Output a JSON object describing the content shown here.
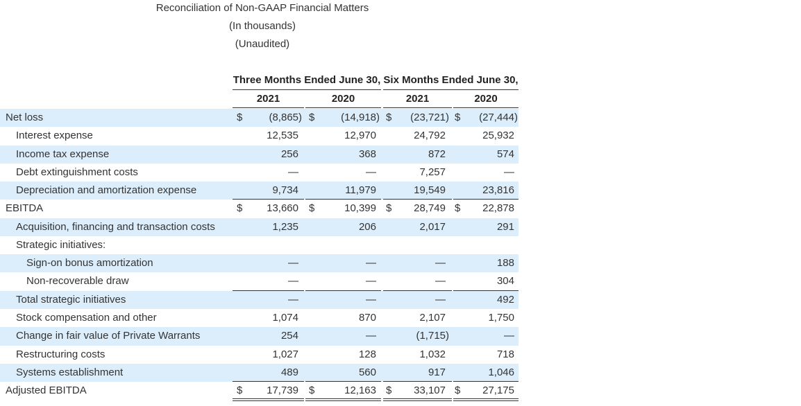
{
  "header": {
    "title": "Reconciliation of Non-GAAP Financial Matters",
    "subtitle": "(In thousands)",
    "note": "(Unaudited)"
  },
  "table": {
    "group_headers": [
      "Three Months Ended June 30,",
      "Six Months Ended June 30,"
    ],
    "columns": [
      "2021",
      "2020",
      "2021",
      "2020"
    ],
    "rows": [
      {
        "label": "Net loss",
        "currency": "$",
        "values": [
          "(8,865)",
          "(14,918)",
          "(23,721)",
          "(27,444)"
        ]
      },
      {
        "label": "Interest expense",
        "values": [
          "12,535",
          "12,970",
          "24,792",
          "25,932"
        ]
      },
      {
        "label": "Income tax expense",
        "values": [
          "256",
          "368",
          "872",
          "574"
        ]
      },
      {
        "label": "Debt extinguishment costs",
        "values": [
          "—",
          "—",
          "7,257",
          "—"
        ]
      },
      {
        "label": "Depreciation and amortization expense",
        "values": [
          "9,734",
          "11,979",
          "19,549",
          "23,816"
        ]
      },
      {
        "label": "EBITDA",
        "currency": "$",
        "values": [
          "13,660",
          "10,399",
          "28,749",
          "22,878"
        ]
      },
      {
        "label": "Acquisition, financing and transaction costs",
        "values": [
          "1,235",
          "206",
          "2,017",
          "291"
        ]
      },
      {
        "label": "Strategic initiatives:",
        "values": []
      },
      {
        "label": "Sign-on bonus amortization",
        "values": [
          "—",
          "—",
          "—",
          "188"
        ]
      },
      {
        "label": "Non-recoverable draw",
        "values": [
          "—",
          "—",
          "—",
          "304"
        ]
      },
      {
        "label": "Total strategic initiatives",
        "values": [
          "—",
          "—",
          "—",
          "492"
        ]
      },
      {
        "label": "Stock compensation and other",
        "values": [
          "1,074",
          "870",
          "2,107",
          "1,750"
        ]
      },
      {
        "label": "Change in fair value of Private Warrants",
        "values": [
          "254",
          "—",
          "(1,715)",
          "—"
        ]
      },
      {
        "label": "Restructuring costs",
        "values": [
          "1,027",
          "128",
          "1,032",
          "718"
        ]
      },
      {
        "label": "Systems establishment",
        "values": [
          "489",
          "560",
          "917",
          "1,046"
        ]
      },
      {
        "label": "Adjusted EBITDA",
        "currency": "$",
        "values": [
          "17,739",
          "12,163",
          "33,107",
          "27,175"
        ]
      }
    ]
  }
}
